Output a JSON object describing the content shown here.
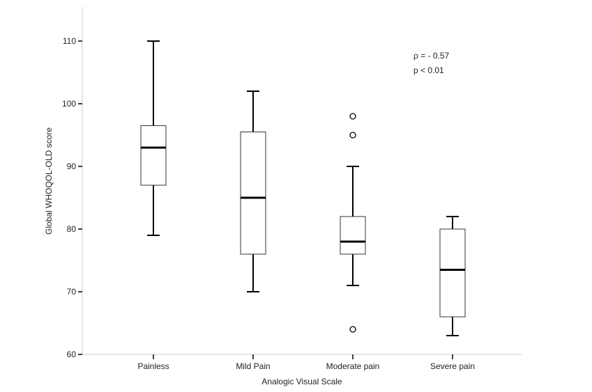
{
  "chart_data": {
    "type": "boxplot",
    "xlabel": "Analogic Visual Scale",
    "ylabel": "Global WHOQOL-OLD score",
    "ylim": [
      60,
      115
    ],
    "yticks": [
      60,
      70,
      80,
      90,
      100,
      110
    ],
    "grid": false,
    "categories": [
      "Painless",
      "Mild Pain",
      "Moderate pain",
      "Severe pain"
    ],
    "boxes": [
      {
        "min": 79,
        "q1": 87,
        "median": 93,
        "q3": 96.5,
        "max": 110,
        "outliers": []
      },
      {
        "min": 70,
        "q1": 76,
        "median": 85,
        "q3": 95.5,
        "max": 102,
        "outliers": []
      },
      {
        "min": 71,
        "q1": 76,
        "median": 78,
        "q3": 82,
        "max": 90,
        "outliers": [
          98,
          95,
          64
        ]
      },
      {
        "min": 63,
        "q1": 66,
        "median": 73.5,
        "q3": 80,
        "max": 82,
        "outliers": []
      }
    ],
    "annotations": [
      "ρ = - 0.57",
      "p < 0.01"
    ]
  }
}
